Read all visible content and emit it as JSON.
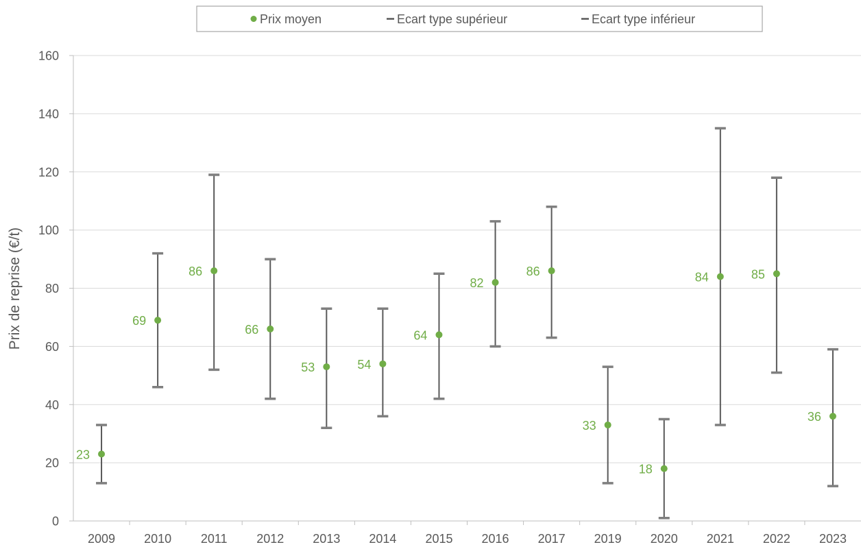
{
  "chart_data": {
    "type": "scatter",
    "ylabel": "Prix de reprise (€/t)",
    "xlabel": "",
    "ylim": [
      0,
      160
    ],
    "yticks": [
      0,
      20,
      40,
      60,
      80,
      100,
      120,
      140,
      160
    ],
    "grid": true,
    "legend_position": "top-center",
    "categories": [
      "2009",
      "2010",
      "2011",
      "2012",
      "2013",
      "2014",
      "2015",
      "2016",
      "2017",
      "2019",
      "2020",
      "2021",
      "2022",
      "2023"
    ],
    "series": [
      {
        "name": "Prix moyen",
        "values": [
          23,
          69,
          86,
          66,
          53,
          54,
          64,
          82,
          86,
          33,
          18,
          84,
          85,
          36
        ]
      },
      {
        "name": "Ecart type supérieur",
        "values": [
          33,
          92,
          119,
          90,
          73,
          73,
          85,
          103,
          108,
          53,
          35,
          135,
          118,
          59
        ]
      },
      {
        "name": "Ecart type inférieur",
        "values": [
          13,
          46,
          52,
          42,
          32,
          36,
          42,
          60,
          63,
          13,
          1,
          33,
          51,
          12
        ]
      }
    ],
    "colors": {
      "mean": "#70ad47",
      "error_bar": "#595959",
      "cap": "#7f7f7f",
      "grid": "#d9d9d9",
      "axis": "#bfbfbf"
    }
  }
}
